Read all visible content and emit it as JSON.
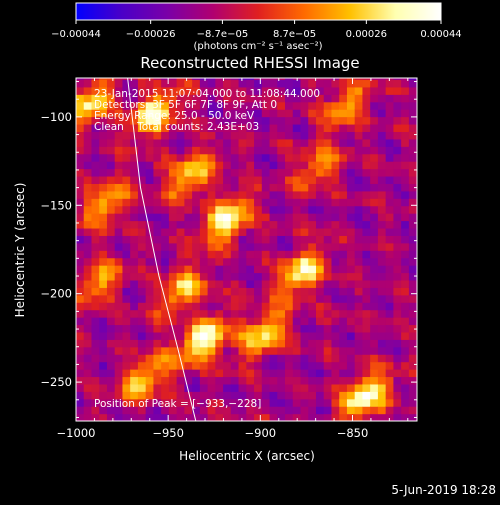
{
  "colorbar": {
    "ticks": [
      "−0.00044",
      "−0.00026",
      "−8.7e−05",
      "8.7e−05",
      "0.00026",
      "0.00044"
    ],
    "tick_values": [
      -0.00044,
      -0.00026,
      -8.7e-05,
      8.7e-05,
      0.00026,
      0.00044
    ],
    "range": [
      -0.00044,
      0.00044
    ],
    "units_label": "(photons cm⁻² s⁻¹ asec⁻²)",
    "colors": [
      "#0000ff",
      "#4a00c8",
      "#7a00a8",
      "#b00070",
      "#e02020",
      "#ff6a00",
      "#ffc000",
      "#ffffb0",
      "#ffffff"
    ]
  },
  "chart_data": {
    "type": "heatmap",
    "title": "Reconstructed RHESSI Image",
    "xlabel": "Heliocentric X (arcsec)",
    "ylabel": "Heliocentric Y (arcsec)",
    "xlim": [
      -1000,
      -815
    ],
    "ylim": [
      -272,
      -78
    ],
    "x_ticks": [
      -1000,
      -950,
      -900,
      -850
    ],
    "y_ticks": [
      -100,
      -150,
      -200,
      -250
    ],
    "annotations": [
      "23-Jan-2015 11:07:04.000 to 11:08:44.000",
      "Detectors: 3F 5F 6F 7F 8F 9F, Att 0",
      "Energy Range: 25.0 - 50.0 keV",
      "Clean    Total counts: 2.43E+03"
    ],
    "peak_label": "Position of Peak = [−933,−228]",
    "peak": [
      -933,
      -228
    ],
    "bright_sources": [
      {
        "x": -995,
        "y": -95,
        "level": 0.8
      },
      {
        "x": -960,
        "y": -100,
        "level": 0.9
      },
      {
        "x": -940,
        "y": -135,
        "level": 0.75
      },
      {
        "x": -920,
        "y": -160,
        "level": 0.95
      },
      {
        "x": -985,
        "y": -150,
        "level": 0.65
      },
      {
        "x": -990,
        "y": -195,
        "level": 0.6
      },
      {
        "x": -945,
        "y": -200,
        "level": 0.7
      },
      {
        "x": -933,
        "y": -228,
        "level": 1.0
      },
      {
        "x": -965,
        "y": -250,
        "level": 0.7
      },
      {
        "x": -880,
        "y": -190,
        "level": 0.85
      },
      {
        "x": -900,
        "y": -225,
        "level": 0.75
      },
      {
        "x": -855,
        "y": -95,
        "level": 0.6
      },
      {
        "x": -845,
        "y": -260,
        "level": 0.95
      },
      {
        "x": -870,
        "y": -130,
        "level": 0.55
      }
    ],
    "limb_line": [
      [
        -972,
        -78
      ],
      [
        -965,
        -140
      ],
      [
        -955,
        -190
      ],
      [
        -945,
        -230
      ],
      [
        -935,
        -272
      ]
    ]
  },
  "footer": {
    "date": "5-Jun-2019 18:28"
  }
}
